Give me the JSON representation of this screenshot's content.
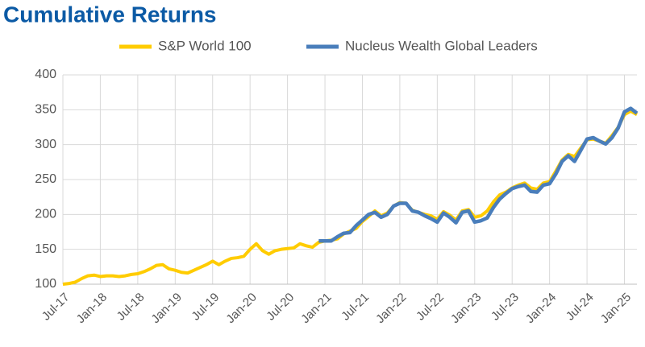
{
  "chart_data": {
    "type": "line",
    "title": "Cumulative Returns",
    "categories": [
      "Jul-17",
      null,
      null,
      null,
      null,
      null,
      "Jan-18",
      null,
      null,
      null,
      null,
      null,
      "Jul-18",
      null,
      null,
      null,
      null,
      null,
      "Jan-19",
      null,
      null,
      null,
      null,
      null,
      "Jul-19",
      null,
      null,
      null,
      null,
      null,
      "Jan-20",
      null,
      null,
      null,
      null,
      null,
      "Jul-20",
      null,
      null,
      null,
      null,
      null,
      "Jan-21",
      null,
      null,
      null,
      null,
      null,
      "Jul-21",
      null,
      null,
      null,
      null,
      null,
      "Jan-22",
      null,
      null,
      null,
      null,
      null,
      "Jul-22",
      null,
      null,
      null,
      null,
      null,
      "Jan-23",
      null,
      null,
      null,
      null,
      null,
      "Jul-23",
      null,
      null,
      null,
      null,
      null,
      "Jan-24",
      null,
      null,
      null,
      null,
      null,
      "Jul-24",
      null,
      null,
      null,
      null,
      null,
      "Jan-25",
      null,
      null
    ],
    "series": [
      {
        "name": "S&P World 100",
        "color": "#ffcc00",
        "values": [
          100,
          101,
          103,
          108,
          112,
          113,
          111,
          112,
          112,
          111,
          112,
          114,
          115,
          118,
          122,
          127,
          128,
          122,
          120,
          117,
          116,
          120,
          124,
          128,
          133,
          128,
          133,
          137,
          138,
          140,
          150,
          158,
          148,
          143,
          148,
          150,
          151,
          152,
          158,
          155,
          153,
          160,
          162,
          163,
          165,
          172,
          176,
          180,
          190,
          197,
          205,
          198,
          202,
          212,
          217,
          216,
          206,
          203,
          200,
          198,
          193,
          204,
          199,
          192,
          205,
          207,
          196,
          198,
          205,
          218,
          228,
          232,
          238,
          242,
          245,
          238,
          236,
          245,
          247,
          262,
          278,
          286,
          283,
          295,
          307,
          308,
          305,
          302,
          313,
          325,
          343,
          348,
          343
        ]
      },
      {
        "name": "Nucleus Wealth Global Leaders",
        "color": "#4a7ebb",
        "values": [
          null,
          null,
          null,
          null,
          null,
          null,
          null,
          null,
          null,
          null,
          null,
          null,
          null,
          null,
          null,
          null,
          null,
          null,
          null,
          null,
          null,
          null,
          null,
          null,
          null,
          null,
          null,
          null,
          null,
          null,
          null,
          null,
          null,
          null,
          null,
          null,
          null,
          null,
          null,
          null,
          null,
          162,
          162,
          162,
          168,
          173,
          174,
          184,
          192,
          200,
          203,
          196,
          200,
          212,
          216,
          216,
          205,
          203,
          198,
          194,
          189,
          202,
          196,
          188,
          203,
          205,
          189,
          191,
          195,
          210,
          222,
          230,
          237,
          240,
          242,
          233,
          232,
          242,
          244,
          258,
          276,
          284,
          276,
          292,
          308,
          310,
          305,
          301,
          310,
          324,
          347,
          352,
          345
        ]
      }
    ],
    "ylim": [
      100,
      400
    ],
    "yticks": [
      100,
      150,
      200,
      250,
      300,
      350,
      400
    ],
    "grid": true,
    "legend": "top"
  }
}
